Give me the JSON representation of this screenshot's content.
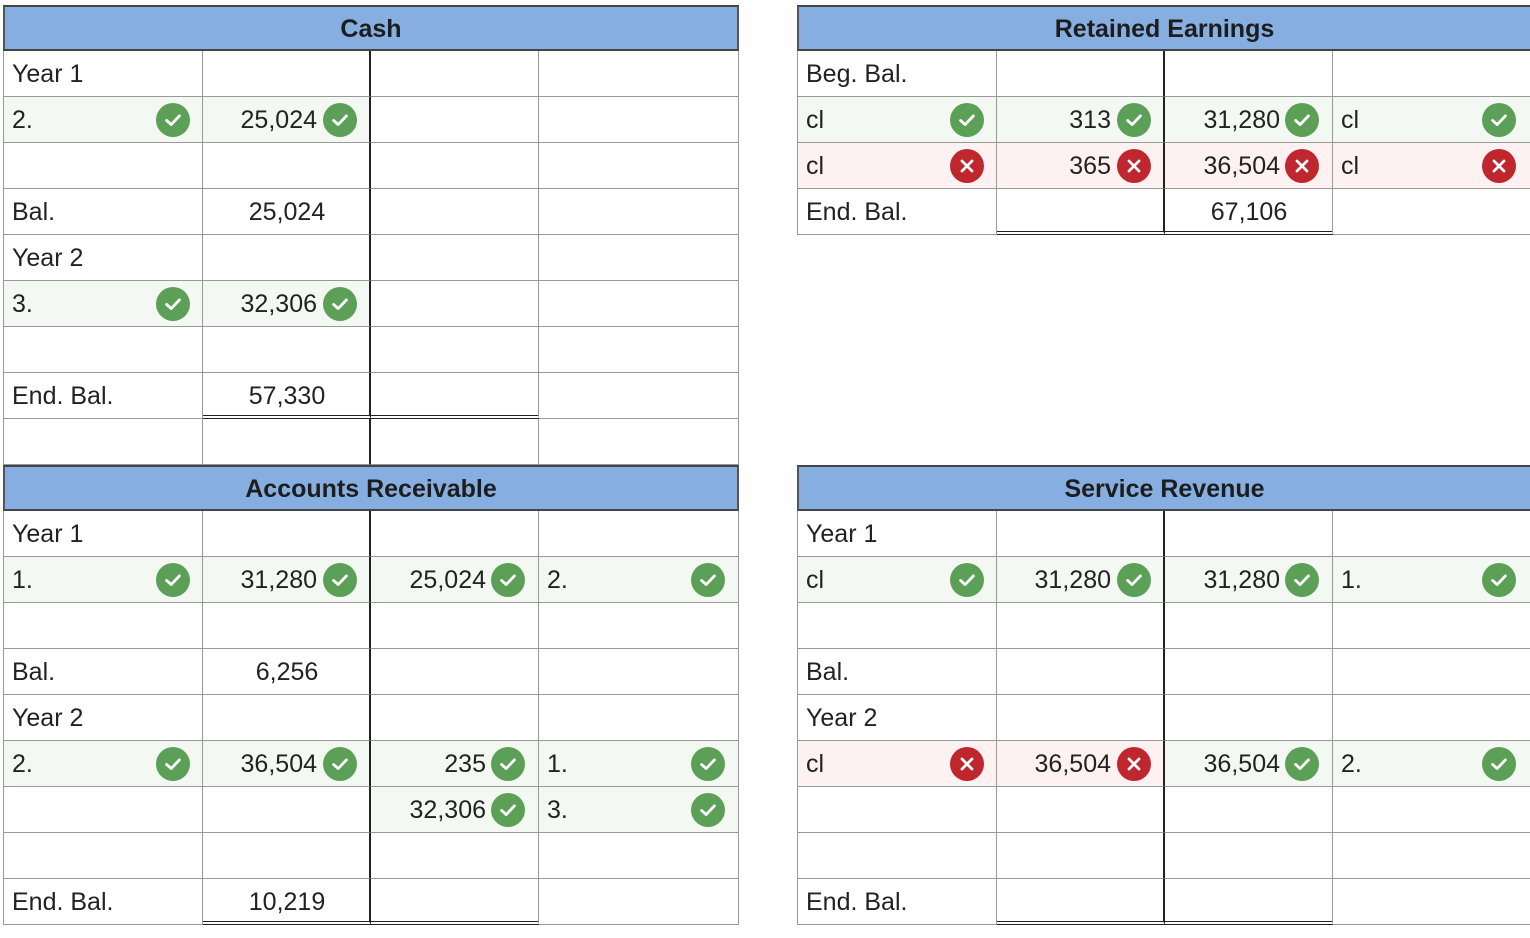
{
  "accounts": {
    "cash": {
      "title": "Cash",
      "rows": [
        {
          "label": "Year 1",
          "debit": "",
          "credit": "",
          "right_label": ""
        },
        {
          "label": "2.",
          "label_status": "ok",
          "debit": "25,024",
          "debit_status": "ok",
          "credit": "",
          "right_label": ""
        },
        {
          "label": "",
          "debit": "",
          "credit": "",
          "right_label": ""
        },
        {
          "label": "Bal.",
          "debit": "25,024",
          "credit": "",
          "right_label": ""
        },
        {
          "label": "Year 2",
          "debit": "",
          "credit": "",
          "right_label": ""
        },
        {
          "label": "3.",
          "label_status": "ok",
          "debit": "32,306",
          "debit_status": "ok",
          "credit": "",
          "right_label": ""
        },
        {
          "label": "",
          "debit": "",
          "credit": "",
          "right_label": ""
        },
        {
          "label": "End. Bal.",
          "debit": "57,330",
          "credit": "",
          "right_label": ""
        },
        {
          "label": "",
          "debit": "",
          "credit": "",
          "right_label": ""
        }
      ]
    },
    "retained_earnings": {
      "title": "Retained Earnings",
      "rows": [
        {
          "label": "Beg. Bal.",
          "debit": "",
          "credit": "",
          "right_label": ""
        },
        {
          "label": "cl",
          "label_status": "ok",
          "debit": "313",
          "debit_status": "ok",
          "credit": "31,280",
          "credit_status": "ok",
          "right_label": "cl",
          "right_status": "ok"
        },
        {
          "label": "cl",
          "label_status": "bad",
          "debit": "365",
          "debit_status": "bad",
          "credit": "36,504",
          "credit_status": "bad",
          "right_label": "cl",
          "right_status": "bad"
        },
        {
          "label": "End. Bal.",
          "debit": "",
          "credit": "67,106",
          "right_label": ""
        }
      ]
    },
    "accounts_receivable": {
      "title": "Accounts Receivable",
      "rows": [
        {
          "label": "Year 1",
          "debit": "",
          "credit": "",
          "right_label": ""
        },
        {
          "label": "1.",
          "label_status": "ok",
          "debit": "31,280",
          "debit_status": "ok",
          "credit": "25,024",
          "credit_status": "ok",
          "right_label": "2.",
          "right_status": "ok"
        },
        {
          "label": "",
          "debit": "",
          "credit": "",
          "right_label": ""
        },
        {
          "label": "Bal.",
          "debit": "6,256",
          "credit": "",
          "right_label": ""
        },
        {
          "label": "Year 2",
          "debit": "",
          "credit": "",
          "right_label": ""
        },
        {
          "label": "2.",
          "label_status": "ok",
          "debit": "36,504",
          "debit_status": "ok",
          "credit": "235",
          "credit_status": "ok",
          "right_label": "1.",
          "right_status": "ok"
        },
        {
          "label": "",
          "debit": "",
          "credit": "32,306",
          "credit_status": "ok",
          "right_label": "3.",
          "right_status": "ok"
        },
        {
          "label": "",
          "debit": "",
          "credit": "",
          "right_label": ""
        },
        {
          "label": "End. Bal.",
          "debit": "10,219",
          "credit": "",
          "right_label": ""
        }
      ]
    },
    "service_revenue": {
      "title": "Service Revenue",
      "rows": [
        {
          "label": "Year 1",
          "debit": "",
          "credit": "",
          "right_label": ""
        },
        {
          "label": "cl",
          "label_status": "ok",
          "debit": "31,280",
          "debit_status": "ok",
          "credit": "31,280",
          "credit_status": "ok",
          "right_label": "1.",
          "right_status": "ok"
        },
        {
          "label": "",
          "debit": "",
          "credit": "",
          "right_label": ""
        },
        {
          "label": "Bal.",
          "debit": "",
          "credit": "",
          "right_label": ""
        },
        {
          "label": "Year 2",
          "debit": "",
          "credit": "",
          "right_label": ""
        },
        {
          "label": "cl",
          "label_status": "bad",
          "debit": "36,504",
          "debit_status": "bad",
          "credit": "36,504",
          "credit_status": "ok",
          "right_label": "2.",
          "right_status": "ok"
        },
        {
          "label": "",
          "debit": "",
          "credit": "",
          "right_label": ""
        },
        {
          "label": "",
          "debit": "",
          "credit": "",
          "right_label": ""
        },
        {
          "label": "End. Bal.",
          "debit": "",
          "credit": "",
          "right_label": ""
        }
      ]
    }
  },
  "colors": {
    "header": "#86aee0",
    "correct": "#5c9f56",
    "incorrect": "#c0262e"
  },
  "icons": {
    "ok": "check-circle-icon",
    "bad": "x-circle-icon"
  }
}
